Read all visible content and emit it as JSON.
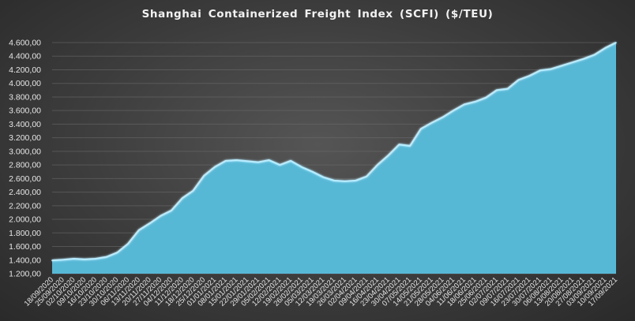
{
  "chart_data": {
    "type": "area",
    "title": "Shanghai Containerized Freight Index  (SCFI) ($/TEU)",
    "xlabel": "",
    "ylabel": "",
    "ylim": [
      1200,
      4600
    ],
    "grid": true,
    "legend": "none",
    "fill_color": "#57b8d6",
    "edge_color": "#b8ecff",
    "background_color": "#3d3d3d",
    "y_tick_labels": [
      "1.200,00",
      "1.400,00",
      "1.600,00",
      "1.800,00",
      "2.000,00",
      "2.200,00",
      "2.400,00",
      "2.600,00",
      "2.800,00",
      "3.000,00",
      "3.200,00",
      "3.400,00",
      "3.600,00",
      "3.800,00",
      "4.000,00",
      "4.200,00",
      "4.400,00",
      "4.600,00"
    ],
    "y_tick_values": [
      1200,
      1400,
      1600,
      1800,
      2000,
      2200,
      2400,
      2600,
      2800,
      3000,
      3200,
      3400,
      3600,
      3800,
      4000,
      4200,
      4400,
      4600
    ],
    "x_tick_labels": [
      "18/09/2020",
      "25/09/2020",
      "02/10/2020",
      "09/10/2020",
      "16/10/2020",
      "23/10/2020",
      "30/10/2020",
      "06/11/2020",
      "13/11/2020",
      "20/11/2020",
      "27/11/2020",
      "04/12/2020",
      "11/12/2020",
      "18/12/2020",
      "25/12/2020",
      "01/01/2021",
      "08/01/2021",
      "15/01/2021",
      "22/01/2021",
      "29/01/2021",
      "05/02/2021",
      "12/02/2021",
      "19/02/2021",
      "26/02/2021",
      "05/03/2021",
      "12/03/2021",
      "19/03/2021",
      "26/03/2021",
      "02/04/2021",
      "09/04/2021",
      "16/04/2021",
      "23/04/2021",
      "30/04/2021",
      "07/05/2021",
      "14/05/2021",
      "21/05/2021",
      "28/05/2021",
      "04/06/2021",
      "11/06/2021",
      "18/06/2021",
      "25/06/2021",
      "02/07/2021",
      "09/07/2021",
      "16/07/2021",
      "23/07/2021",
      "30/07/2021",
      "06/08/2021",
      "13/08/2021",
      "20/08/2021",
      "27/08/2021",
      "03/09/2021",
      "10/09/2021",
      "17/09/2021"
    ],
    "x": [
      "18/09/2020",
      "25/09/2020",
      "02/10/2020",
      "09/10/2020",
      "16/10/2020",
      "23/10/2020",
      "30/10/2020",
      "06/11/2020",
      "13/11/2020",
      "20/11/2020",
      "27/11/2020",
      "04/12/2020",
      "11/12/2020",
      "18/12/2020",
      "25/12/2020",
      "01/01/2021",
      "08/01/2021",
      "15/01/2021",
      "22/01/2021",
      "29/01/2021",
      "05/02/2021",
      "12/02/2021",
      "19/02/2021",
      "26/02/2021",
      "05/03/2021",
      "12/03/2021",
      "19/03/2021",
      "26/03/2021",
      "02/04/2021",
      "09/04/2021",
      "16/04/2021",
      "23/04/2021",
      "30/04/2021",
      "07/05/2021",
      "14/05/2021",
      "21/05/2021",
      "28/05/2021",
      "04/06/2021",
      "11/06/2021",
      "18/06/2021",
      "25/06/2021",
      "02/07/2021",
      "09/07/2021",
      "16/07/2021",
      "23/07/2021",
      "30/07/2021",
      "06/08/2021",
      "13/08/2021",
      "20/08/2021",
      "27/08/2021",
      "03/09/2021",
      "10/09/2021",
      "17/09/2021"
    ],
    "series": [
      {
        "values": [
          1395,
          1405,
          1420,
          1410,
          1420,
          1445,
          1510,
          1640,
          1840,
          1940,
          2050,
          2130,
          2310,
          2420,
          2640,
          2770,
          2860,
          2870,
          2855,
          2840,
          2870,
          2800,
          2860,
          2770,
          2700,
          2620,
          2570,
          2560,
          2570,
          2630,
          2800,
          2940,
          3100,
          3080,
          3330,
          3420,
          3500,
          3600,
          3690,
          3730,
          3790,
          3900,
          3920,
          4050,
          4110,
          4190,
          4210,
          4260,
          4310,
          4360,
          4420,
          4520,
          4600
        ]
      }
    ]
  }
}
